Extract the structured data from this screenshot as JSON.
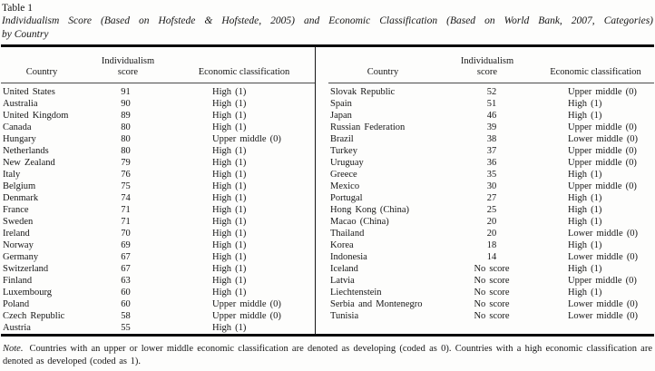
{
  "caption": {
    "label": "Table 1",
    "title_line1": "Individualism Score (Based on Hofstede & Hofstede, 2005) and Economic Classification (Based on World Bank, 2007, Categories)",
    "title_line2": "by Country"
  },
  "columns": {
    "country": "Country",
    "score": "Individualism score",
    "classification": "Economic classification"
  },
  "left_rows": [
    {
      "country": "United States",
      "score": "91",
      "classification": "High (1)"
    },
    {
      "country": "Australia",
      "score": "90",
      "classification": "High (1)"
    },
    {
      "country": "United Kingdom",
      "score": "89",
      "classification": "High (1)"
    },
    {
      "country": "Canada",
      "score": "80",
      "classification": "High (1)"
    },
    {
      "country": "Hungary",
      "score": "80",
      "classification": "Upper middle (0)"
    },
    {
      "country": "Netherlands",
      "score": "80",
      "classification": "High (1)"
    },
    {
      "country": "New Zealand",
      "score": "79",
      "classification": "High (1)"
    },
    {
      "country": "Italy",
      "score": "76",
      "classification": "High (1)"
    },
    {
      "country": "Belgium",
      "score": "75",
      "classification": "High (1)"
    },
    {
      "country": "Denmark",
      "score": "74",
      "classification": "High (1)"
    },
    {
      "country": "France",
      "score": "71",
      "classification": "High (1)"
    },
    {
      "country": "Sweden",
      "score": "71",
      "classification": "High (1)"
    },
    {
      "country": "Ireland",
      "score": "70",
      "classification": "High (1)"
    },
    {
      "country": "Norway",
      "score": "69",
      "classification": "High (1)"
    },
    {
      "country": "Germany",
      "score": "67",
      "classification": "High (1)"
    },
    {
      "country": "Switzerland",
      "score": "67",
      "classification": "High (1)"
    },
    {
      "country": "Finland",
      "score": "63",
      "classification": "High (1)"
    },
    {
      "country": "Luxembourg",
      "score": "60",
      "classification": "High (1)"
    },
    {
      "country": "Poland",
      "score": "60",
      "classification": "Upper middle (0)"
    },
    {
      "country": "Czech Republic",
      "score": "58",
      "classification": "Upper middle (0)"
    },
    {
      "country": "Austria",
      "score": "55",
      "classification": "High (1)"
    }
  ],
  "right_rows": [
    {
      "country": "Slovak Republic",
      "score": "52",
      "classification": "Upper middle (0)"
    },
    {
      "country": "Spain",
      "score": "51",
      "classification": "High (1)"
    },
    {
      "country": "Japan",
      "score": "46",
      "classification": "High (1)"
    },
    {
      "country": "Russian Federation",
      "score": "39",
      "classification": "Upper middle (0)"
    },
    {
      "country": "Brazil",
      "score": "38",
      "classification": "Lower middle (0)"
    },
    {
      "country": "Turkey",
      "score": "37",
      "classification": "Upper middle (0)"
    },
    {
      "country": "Uruguay",
      "score": "36",
      "classification": "Upper middle (0)"
    },
    {
      "country": "Greece",
      "score": "35",
      "classification": "High (1)"
    },
    {
      "country": "Mexico",
      "score": "30",
      "classification": "Upper middle (0)"
    },
    {
      "country": "Portugal",
      "score": "27",
      "classification": "High (1)"
    },
    {
      "country": "Hong Kong (China)",
      "score": "25",
      "classification": "High (1)"
    },
    {
      "country": "Macao (China)",
      "score": "20",
      "classification": "High (1)"
    },
    {
      "country": "Thailand",
      "score": "20",
      "classification": "Lower middle (0)"
    },
    {
      "country": "Korea",
      "score": "18",
      "classification": "High (1)"
    },
    {
      "country": "Indonesia",
      "score": "14",
      "classification": "Lower middle (0)"
    },
    {
      "country": "Iceland",
      "score": "No score",
      "classification": "High (1)"
    },
    {
      "country": "Latvia",
      "score": "No score",
      "classification": "Upper middle (0)"
    },
    {
      "country": "Liechtenstein",
      "score": "No score",
      "classification": "High (1)"
    },
    {
      "country": "Serbia and Montenegro",
      "score": "No score",
      "classification": "Lower middle (0)"
    },
    {
      "country": "Tunisia",
      "score": "No score",
      "classification": "Lower middle (0)"
    }
  ],
  "note": {
    "label": "Note.",
    "text": "Countries with an upper or lower middle economic classification are denoted as developing (coded as 0). Countries with a high economic classification are denoted as developed (coded as 1)."
  },
  "colors": {
    "text": "#161616",
    "background": "#fdfdfc",
    "rule": "#0c0c0c"
  }
}
